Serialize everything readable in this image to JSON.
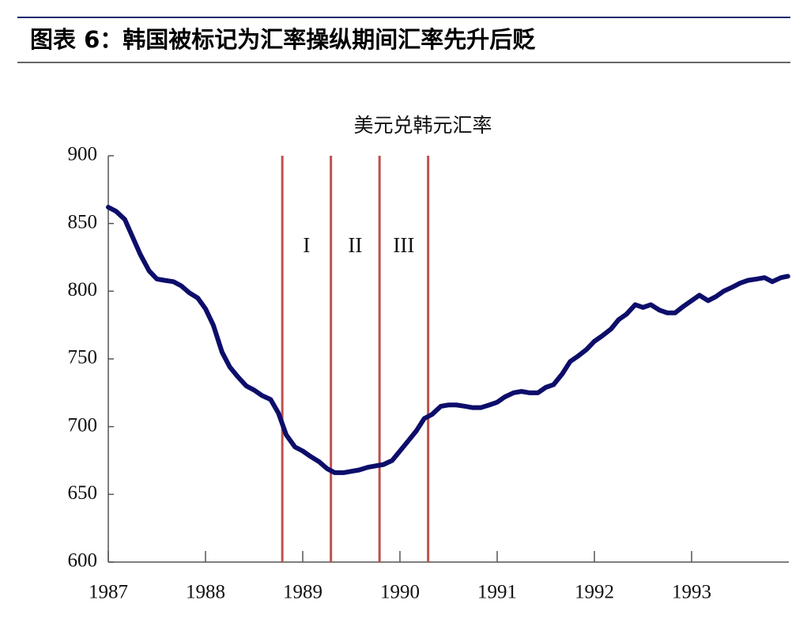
{
  "header": {
    "title": "图表 6：韩国被标记为汇率操纵期间汇率先升后贬"
  },
  "chart_data": {
    "type": "line",
    "title": "美元兑韩元汇率",
    "x": [
      1987.0,
      1987.08,
      1987.17,
      1987.25,
      1987.33,
      1987.42,
      1987.5,
      1987.58,
      1987.67,
      1987.75,
      1987.83,
      1987.92,
      1988.0,
      1988.08,
      1988.17,
      1988.25,
      1988.33,
      1988.42,
      1988.5,
      1988.58,
      1988.67,
      1988.75,
      1988.83,
      1988.92,
      1989.0,
      1989.08,
      1989.17,
      1989.25,
      1989.33,
      1989.42,
      1989.5,
      1989.58,
      1989.67,
      1989.75,
      1989.83,
      1989.92,
      1990.0,
      1990.08,
      1990.17,
      1990.25,
      1990.33,
      1990.42,
      1990.5,
      1990.58,
      1990.67,
      1990.75,
      1990.83,
      1990.92,
      1991.0,
      1991.08,
      1991.17,
      1991.25,
      1991.33,
      1991.42,
      1991.5,
      1991.58,
      1991.67,
      1991.75,
      1991.83,
      1991.92,
      1992.0,
      1992.08,
      1992.17,
      1992.25,
      1992.33,
      1992.42,
      1992.5,
      1992.58,
      1992.67,
      1992.75,
      1992.83,
      1992.92,
      1993.0,
      1993.08,
      1993.17,
      1993.25,
      1993.33,
      1993.42,
      1993.5,
      1993.58,
      1993.67,
      1993.75,
      1993.83,
      1993.92,
      1993.99
    ],
    "series": [
      {
        "color": "#0d0d6b",
        "values": [
          862,
          859,
          853,
          840,
          827,
          815,
          809,
          808,
          807,
          804,
          799,
          795,
          787,
          775,
          755,
          744,
          737,
          730,
          727,
          723,
          720,
          710,
          694,
          685,
          682,
          678,
          674,
          669,
          666,
          666,
          667,
          668,
          670,
          671,
          672,
          675,
          682,
          689,
          697,
          706,
          709,
          715,
          716,
          716,
          715,
          714,
          714,
          716,
          718,
          722,
          725,
          726,
          725,
          725,
          729,
          731,
          739,
          748,
          752,
          757,
          763,
          767,
          772,
          779,
          783,
          790,
          788,
          790,
          786,
          784,
          784,
          789,
          793,
          797,
          793,
          796,
          800,
          803,
          806,
          808,
          809,
          810,
          807,
          810,
          811
        ]
      }
    ],
    "xlim": [
      1987,
      1994
    ],
    "xticks": [
      1987,
      1988,
      1989,
      1990,
      1991,
      1992,
      1993
    ],
    "ylim": [
      600,
      900
    ],
    "yticks": [
      600,
      650,
      700,
      750,
      800,
      850,
      900
    ],
    "vlines": {
      "color": "#c0504d",
      "values": [
        1988.79,
        1989.29,
        1989.79,
        1990.29
      ]
    },
    "regions": [
      "I",
      "II",
      "III"
    ]
  }
}
